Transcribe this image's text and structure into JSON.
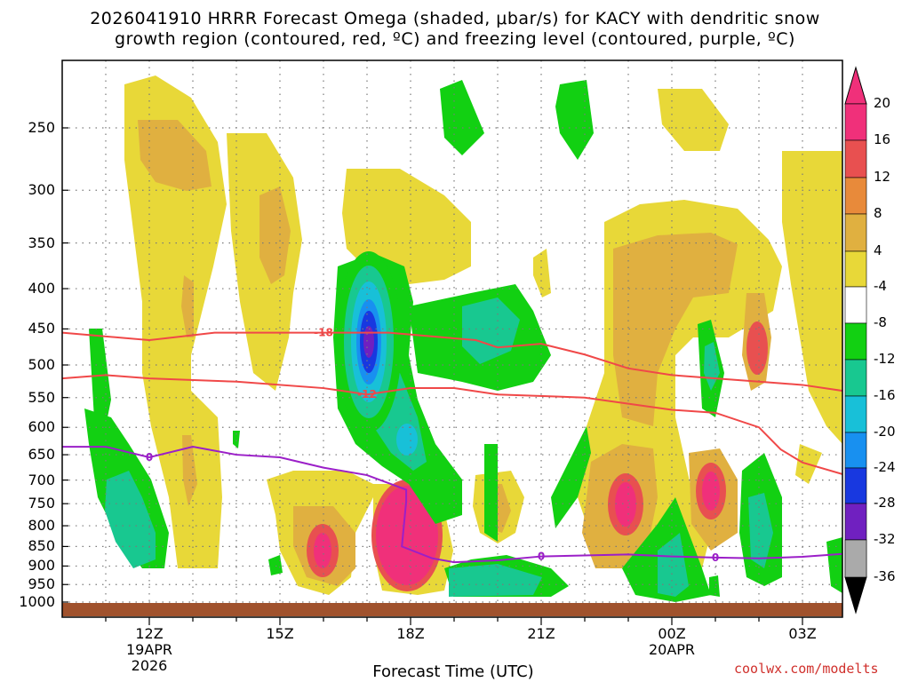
{
  "title_line1": "2026041910 HRRR Forecast Omega (shaded, μbar/s) for KACY with dendritic snow",
  "title_line2": "growth region (contoured, red, ºC) and freezing level (contoured, purple, ºC)",
  "x_axis_title": "Forecast Time (UTC)",
  "credit": "coolwx.com/modelts",
  "colors": {
    "surface": "#a0522d",
    "dendritic_contour": "#f04848",
    "freezing_contour": "#9b1fc8"
  },
  "chart_data": {
    "type": "heatmap",
    "xlabel": "Forecast Time (UTC)",
    "ylabel": "",
    "y_axis": {
      "scale": "log",
      "ticks_mb": [
        250,
        300,
        350,
        400,
        450,
        500,
        550,
        600,
        650,
        700,
        750,
        800,
        850,
        900,
        950,
        1000
      ]
    },
    "x_axis": {
      "range_hours_utc": [
        "2026-04-19 10Z",
        "2026-04-20 04Z"
      ],
      "ticks": [
        {
          "time": "2026-04-19 12Z",
          "label": "12Z",
          "sub1": "19APR",
          "sub2": "2026"
        },
        {
          "time": "2026-04-19 15Z",
          "label": "15Z",
          "sub1": "",
          "sub2": ""
        },
        {
          "time": "2026-04-19 18Z",
          "label": "18Z",
          "sub1": "",
          "sub2": ""
        },
        {
          "time": "2026-04-19 21Z",
          "label": "21Z",
          "sub1": "",
          "sub2": ""
        },
        {
          "time": "2026-04-20 00Z",
          "label": "00Z",
          "sub1": "20APR",
          "sub2": ""
        },
        {
          "time": "2026-04-20 03Z",
          "label": "03Z",
          "sub1": "",
          "sub2": ""
        }
      ]
    },
    "grid": true,
    "colorbar": {
      "levels": [
        20,
        16,
        12,
        8,
        4,
        -4,
        -8,
        -12,
        -16,
        -20,
        -24,
        -28,
        -32,
        -36
      ],
      "level_labels": [
        "20",
        "16",
        "12",
        "8",
        "4",
        "-4",
        "-8",
        "-12",
        "-16",
        "-20",
        "-24",
        "-28",
        "-32",
        "-36"
      ],
      "band_colors": [
        "#f0307a",
        "#e85050",
        "#e88a3a",
        "#e0b040",
        "#e8d838",
        "#ffffff",
        "#12d012",
        "#18c890",
        "#18c0d8",
        "#1890f0",
        "#1838e0",
        "#7020c0",
        "#a010c0",
        "#aaaaaa"
      ]
    },
    "contours": [
      {
        "name": "dendritic_snow_growth",
        "level_label": "-18",
        "points": [
          [
            "10.0Z",
            455
          ],
          [
            "12.0Z",
            465
          ],
          [
            "13.5Z",
            455
          ],
          [
            "16.0Z",
            455
          ],
          [
            "17.5Z",
            455
          ],
          [
            "19.5Z",
            465
          ],
          [
            "20.0Z",
            475
          ],
          [
            "21.0Z",
            470
          ],
          [
            "22.0Z",
            485
          ],
          [
            "23.0Z",
            505
          ],
          [
            "00.0Z",
            515
          ],
          [
            "01.0Z",
            520
          ],
          [
            "02.0Z",
            525
          ],
          [
            "03.0Z",
            530
          ],
          [
            "04.0Z",
            540
          ]
        ]
      },
      {
        "name": "dendritic_snow_growth",
        "level_label": "-12",
        "points": [
          [
            "10.0Z",
            520
          ],
          [
            "11.0Z",
            515
          ],
          [
            "12.0Z",
            520
          ],
          [
            "14.0Z",
            525
          ],
          [
            "16.0Z",
            535
          ],
          [
            "17.0Z",
            545
          ],
          [
            "18.0Z",
            535
          ],
          [
            "19.0Z",
            535
          ],
          [
            "20.0Z",
            545
          ],
          [
            "22.0Z",
            550
          ],
          [
            "23.0Z",
            560
          ],
          [
            "00.0Z",
            570
          ],
          [
            "01.0Z",
            575
          ],
          [
            "02.0Z",
            600
          ],
          [
            "02.5Z",
            640
          ],
          [
            "03.0Z",
            665
          ],
          [
            "04.0Z",
            690
          ]
        ]
      },
      {
        "name": "freezing_level",
        "level_label": "0",
        "points": [
          [
            "10.0Z",
            635
          ],
          [
            "11.0Z",
            635
          ],
          [
            "12.0Z",
            655
          ],
          [
            "13.0Z",
            635
          ],
          [
            "14.0Z",
            650
          ],
          [
            "15.0Z",
            655
          ],
          [
            "16.0Z",
            675
          ],
          [
            "17.0Z",
            690
          ],
          [
            "17.9Z",
            720
          ],
          [
            "17.9Z",
            745
          ],
          [
            "17.8Z",
            850
          ],
          [
            "18.5Z",
            880
          ],
          [
            "19.0Z",
            890
          ],
          [
            "20.0Z",
            885
          ],
          [
            "21.0Z",
            875
          ],
          [
            "23.0Z",
            870
          ],
          [
            "00.0Z",
            875
          ],
          [
            "01.0Z",
            878
          ],
          [
            "02.0Z",
            880
          ],
          [
            "03.0Z",
            876
          ],
          [
            "04.0Z",
            868
          ]
        ]
      }
    ]
  }
}
